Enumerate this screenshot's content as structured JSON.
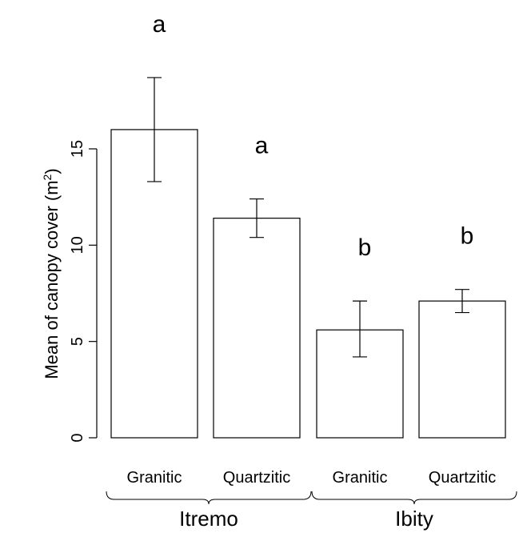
{
  "chart_data": {
    "type": "bar",
    "title": "",
    "ylabel": "Mean of canopy cover (m",
    "ylabel_superscript": "2",
    "ylabel_suffix": ")",
    "ylim": [
      0,
      17
    ],
    "yticks": [
      0,
      5,
      10,
      15
    ],
    "ytick_labels": [
      "0",
      "5",
      "10",
      "15"
    ],
    "grid": false,
    "categories": [
      "Granitic",
      "Quartzitic",
      "Granitic",
      "Quartzitic"
    ],
    "groups": [
      {
        "label": "Itremo",
        "categories": [
          0,
          1
        ]
      },
      {
        "label": "Ibity",
        "categories": [
          2,
          3
        ]
      }
    ],
    "values": [
      16.0,
      11.4,
      5.6,
      7.1
    ],
    "error_low": [
      13.3,
      10.4,
      4.2,
      6.5
    ],
    "error_high": [
      18.7,
      12.4,
      7.1,
      7.7
    ],
    "significance_labels": [
      "a",
      "a",
      "b",
      "b"
    ]
  }
}
